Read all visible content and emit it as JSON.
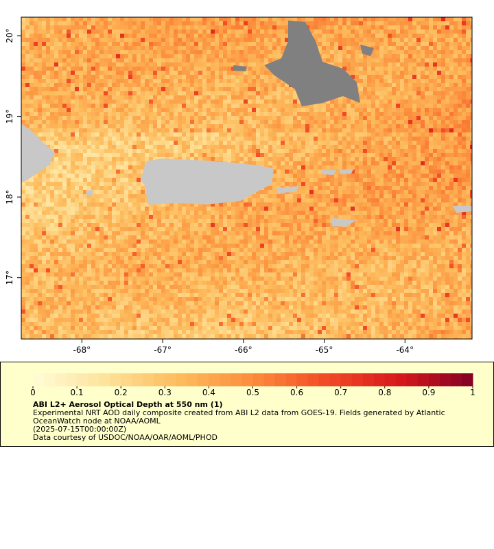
{
  "map": {
    "xlim": [
      -68.75,
      -63.17
    ],
    "ylim": [
      16.24,
      20.23
    ],
    "xticks": [
      {
        "value": -68,
        "label": "-68°"
      },
      {
        "value": -67,
        "label": "-67°"
      },
      {
        "value": -66,
        "label": "-66°"
      },
      {
        "value": -65,
        "label": "-65°"
      },
      {
        "value": -64,
        "label": "-64°"
      }
    ],
    "yticks": [
      {
        "value": 17,
        "label": "17°"
      },
      {
        "value": 18,
        "label": "18°"
      },
      {
        "value": 19,
        "label": "19°"
      },
      {
        "value": 20,
        "label": "20°"
      }
    ]
  },
  "colorbar": {
    "lim": [
      0,
      1
    ],
    "ticks": [
      0,
      0.1,
      0.2,
      0.3,
      0.4,
      0.5,
      0.6,
      0.7,
      0.8,
      0.9,
      1
    ],
    "colors": [
      "#fffcd6",
      "#fee29a",
      "#fdbb5c",
      "#fc8d3c",
      "#f24a26",
      "#d7191c",
      "#800026"
    ],
    "title": "ABI L2+ Aerosol Optical Depth at 550 nm (1)",
    "lines": [
      "Experimental NRT AOD daily composite created from ABI L2 data from GOES-19. Fields generated by Atlantic OceanWatch node at NOAA/AOML",
      "(2025-07-15T00:00:00Z)",
      "Data courtesy of USDOC/NOAA/OAR/AOML/PHOD"
    ]
  }
}
